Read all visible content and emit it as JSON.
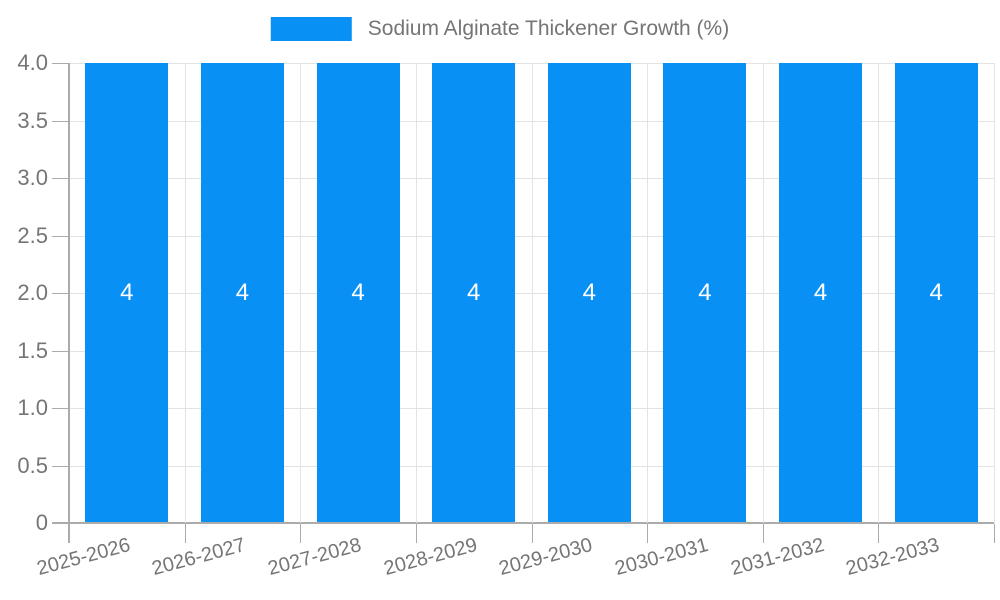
{
  "legend": {
    "label": "Sodium Alginate Thickener Growth (%)"
  },
  "chart_data": {
    "type": "bar",
    "title": "Sodium Alginate Thickener Growth (%)",
    "categories": [
      "2025-2026",
      "2026-2027",
      "2027-2028",
      "2028-2029",
      "2029-2030",
      "2030-2031",
      "2031-2032",
      "2032-2033"
    ],
    "series": [
      {
        "name": "Sodium Alginate Thickener Growth (%)",
        "values": [
          4,
          4,
          4,
          4,
          4,
          4,
          4,
          4
        ]
      }
    ],
    "bar_value_labels": [
      "4",
      "4",
      "4",
      "4",
      "4",
      "4",
      "4",
      "4"
    ],
    "xlabel": "",
    "ylabel": "",
    "ylim": [
      0,
      4
    ],
    "y_tick_labels": [
      "0",
      "0.5",
      "1.0",
      "1.5",
      "2.0",
      "2.5",
      "3.0",
      "3.5",
      "4.0"
    ],
    "grid": true,
    "legend_position": "top-center",
    "x_label_rotation_deg": 15
  },
  "colors": {
    "bar": "#0990f5",
    "grid": "#e3e3e3",
    "axis": "#ababab",
    "text": "#757575",
    "bar_value_text": "#ffffff",
    "background": "#ffffff"
  }
}
